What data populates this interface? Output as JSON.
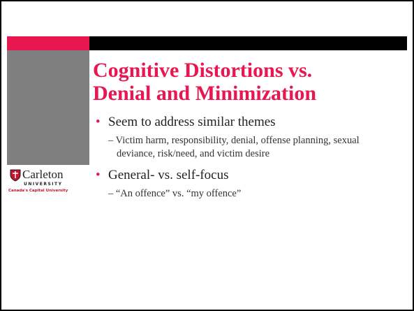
{
  "slide": {
    "title": [
      "Cognitive Distortions vs.",
      "Denial and Minimization"
    ],
    "bullets": [
      {
        "text": "Seem to address similar themes",
        "sub": [
          "Victim harm, responsibility, denial, offense planning, sexual deviance, risk/need, and victim desire"
        ]
      },
      {
        "text": "General- vs. self-focus",
        "sub": [
          "“An offence” vs. “my offence”"
        ]
      }
    ],
    "logo": {
      "name": "Carleton",
      "sub": "UNIVERSITY",
      "tagline": "Canada's Capital University"
    }
  }
}
